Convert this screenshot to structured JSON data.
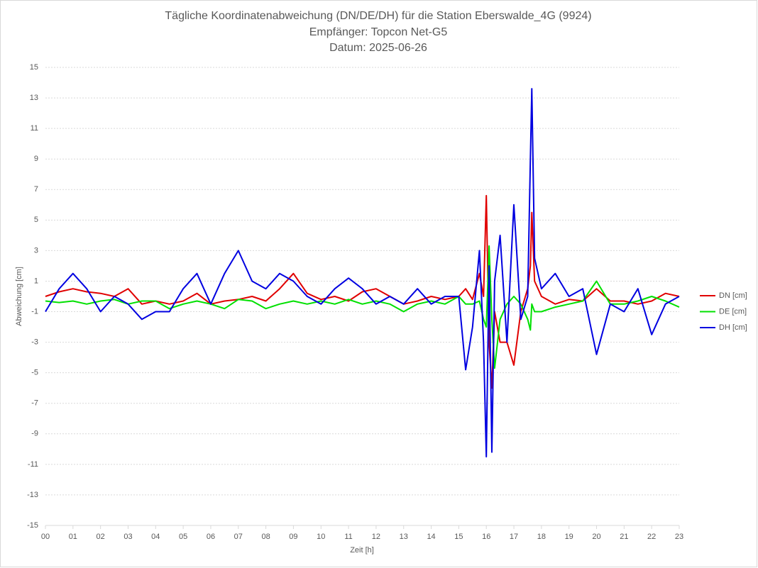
{
  "chart_data": {
    "type": "line",
    "title": [
      "Tägliche Koordinatenabweichung (DN/DE/DH) für die Station Eberswalde_4G (9924)",
      "Empfänger: Topcon Net-G5",
      "Datum: 2025-06-26"
    ],
    "x_label": "Zeit [h]",
    "y_label": "Abweichung [cm]",
    "x": [
      0,
      0.5,
      1,
      1.5,
      2,
      2.5,
      3,
      3.5,
      4,
      4.5,
      5,
      5.5,
      6,
      6.5,
      7,
      7.5,
      8,
      8.5,
      9,
      9.5,
      10,
      10.5,
      11,
      11.5,
      12,
      12.5,
      13,
      13.5,
      14,
      14.5,
      15,
      15.25,
      15.5,
      15.75,
      15.9,
      16,
      16.1,
      16.2,
      16.3,
      16.5,
      16.75,
      17,
      17.25,
      17.5,
      17.6,
      17.65,
      17.75,
      18,
      18.5,
      19,
      19.5,
      20,
      20.5,
      21,
      21.5,
      22,
      22.5,
      23
    ],
    "series": [
      {
        "name": "DN [cm]",
        "color": "#e00000",
        "values": [
          0,
          0.3,
          0.5,
          0.3,
          0.2,
          0,
          0.5,
          -0.5,
          -0.3,
          -0.5,
          -0.3,
          0.2,
          -0.5,
          -0.3,
          -0.2,
          0,
          -0.3,
          0.5,
          1.5,
          0.2,
          -0.2,
          0,
          -0.3,
          0.3,
          0.5,
          0,
          -0.5,
          -0.3,
          0,
          -0.2,
          0,
          0.5,
          -0.2,
          1.5,
          0,
          6.6,
          -3,
          -6,
          -1,
          -3,
          -3,
          -4.5,
          -1,
          0.5,
          2,
          5.5,
          1,
          0,
          -0.5,
          -0.2,
          -0.3,
          0.5,
          -0.3,
          -0.3,
          -0.5,
          -0.3,
          0.2,
          0
        ]
      },
      {
        "name": "DE [cm]",
        "color": "#00e000",
        "values": [
          -0.3,
          -0.4,
          -0.3,
          -0.5,
          -0.3,
          -0.2,
          -0.5,
          -0.3,
          -0.3,
          -0.8,
          -0.5,
          -0.3,
          -0.5,
          -0.8,
          -0.2,
          -0.3,
          -0.8,
          -0.5,
          -0.3,
          -0.5,
          -0.3,
          -0.5,
          -0.2,
          -0.5,
          -0.3,
          -0.5,
          -1,
          -0.5,
          -0.3,
          -0.5,
          0,
          -0.5,
          -0.5,
          -0.3,
          -1.5,
          -2,
          3.3,
          -1.5,
          -4.7,
          -1.5,
          -0.5,
          0,
          -0.5,
          -1.5,
          -2.2,
          -0.5,
          -1,
          -1,
          -0.7,
          -0.5,
          -0.3,
          1,
          -0.5,
          -0.5,
          -0.3,
          0,
          -0.3,
          -0.7
        ]
      },
      {
        "name": "DH [cm]",
        "color": "#0000e0",
        "values": [
          -1,
          0.5,
          1.5,
          0.5,
          -1,
          0,
          -0.5,
          -1.5,
          -1,
          -1,
          0.5,
          1.5,
          -0.5,
          1.5,
          3,
          1,
          0.5,
          1.5,
          1,
          0,
          -0.5,
          0.5,
          1.2,
          0.5,
          -0.5,
          0,
          -0.5,
          0.5,
          -0.5,
          0,
          0,
          -4.8,
          -2,
          3,
          -3,
          -10.5,
          2,
          -10.2,
          1,
          4,
          -3,
          6,
          -1.5,
          0,
          9,
          13.6,
          2.5,
          0.5,
          1.5,
          0,
          0.5,
          -3.8,
          -0.5,
          -1,
          0.5,
          -2.5,
          -0.5,
          0
        ]
      }
    ],
    "xlim": [
      0,
      23
    ],
    "xticks": [
      {
        "value": 0,
        "label": "00"
      },
      {
        "value": 1,
        "label": "01"
      },
      {
        "value": 2,
        "label": "02"
      },
      {
        "value": 3,
        "label": "03"
      },
      {
        "value": 4,
        "label": "04"
      },
      {
        "value": 5,
        "label": "05"
      },
      {
        "value": 6,
        "label": "06"
      },
      {
        "value": 7,
        "label": "07"
      },
      {
        "value": 8,
        "label": "08"
      },
      {
        "value": 9,
        "label": "09"
      },
      10,
      11,
      12,
      13,
      14,
      15,
      16,
      17,
      18,
      19,
      20,
      21,
      22,
      23
    ],
    "ylim": [
      -15,
      15
    ],
    "yticks": [
      -15,
      -13,
      -11,
      -9,
      -7,
      -5,
      -3,
      -1,
      1,
      3,
      5,
      7,
      9,
      11,
      13,
      15
    ],
    "grid": true,
    "legend": "right"
  }
}
